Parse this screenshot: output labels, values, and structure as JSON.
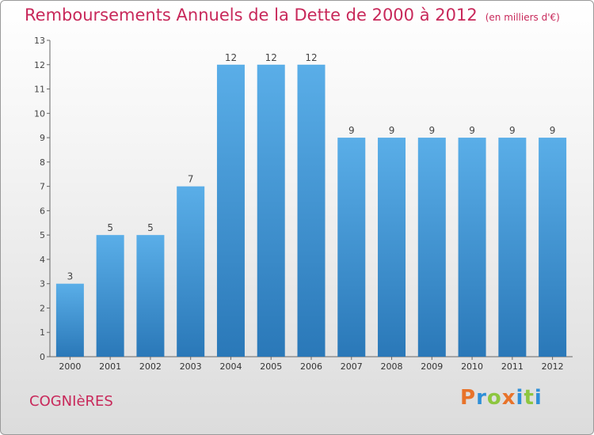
{
  "header": {
    "title": "Remboursements Annuels de la Dette de 2000 à 2012",
    "subtitle": "(en milliers d'€)"
  },
  "footer": {
    "commune": "COGNIèRES",
    "brand_letters": [
      "P",
      "r",
      "o",
      "x",
      "i",
      "t",
      "i"
    ],
    "brand_colors": [
      "#e8732a",
      "#2e8fd8",
      "#8dc63f",
      "#e8732a",
      "#2e8fd8",
      "#8dc63f",
      "#2e8fd8"
    ]
  },
  "colors": {
    "bar_top": "#5aaee8",
    "bar_bottom": "#2a78b8",
    "accent": "#c8285a"
  },
  "chart_data": {
    "type": "bar",
    "title": "Remboursements Annuels de la Dette de 2000 à 2012",
    "subtitle": "(en milliers d'€)",
    "xlabel": "",
    "ylabel": "",
    "categories": [
      "2000",
      "2001",
      "2002",
      "2003",
      "2004",
      "2005",
      "2006",
      "2007",
      "2008",
      "2009",
      "2010",
      "2011",
      "2012"
    ],
    "values": [
      3,
      5,
      5,
      7,
      12,
      12,
      12,
      9,
      9,
      9,
      9,
      9,
      9
    ],
    "value_labels": [
      "3",
      "5",
      "5",
      "7",
      "12",
      "12",
      "12",
      "9",
      "9",
      "9",
      "9",
      "9",
      "9"
    ],
    "ylim": [
      0,
      13
    ],
    "yticks": [
      "0",
      "1",
      "2",
      "3",
      "4",
      "5",
      "6",
      "7",
      "8",
      "9",
      "10",
      "11",
      "12",
      "13"
    ],
    "grid": false,
    "legend": "none"
  }
}
